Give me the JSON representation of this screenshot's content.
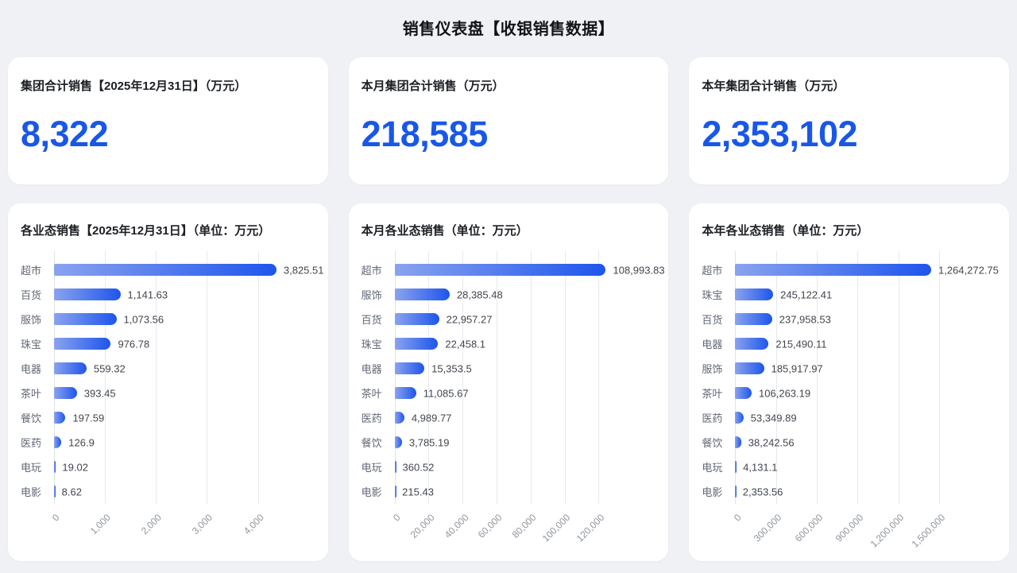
{
  "page_title": "销售仪表盘【收银销售数据】",
  "colors": {
    "accent_blue": "#1957e8",
    "bar_gradient_start": "#8aa3ee",
    "bar_gradient_end": "#1e55ec",
    "page_bg": "#f0f1f4",
    "card_bg": "#ffffff",
    "gridline": "#e7e9ed"
  },
  "kpi_cards": [
    {
      "label": "集团合计销售【2025年12月31日】（万元）",
      "value": "8,322"
    },
    {
      "label": "本月集团合计销售（万元）",
      "value": "218,585"
    },
    {
      "label": "本年集团合计销售（万元）",
      "value": "2,353,102"
    }
  ],
  "chart_data": [
    {
      "type": "bar",
      "orientation": "horizontal",
      "title": "各业态销售【2025年12月31日】（单位：万元）",
      "unit": "万元",
      "grid": true,
      "legend": "none",
      "xlim": [
        0,
        4000
      ],
      "categories": [
        "超市",
        "百货",
        "服饰",
        "珠宝",
        "电器",
        "茶叶",
        "餐饮",
        "医药",
        "电玩",
        "电影"
      ],
      "values": [
        3825.51,
        1141.63,
        1073.56,
        976.78,
        559.32,
        393.45,
        197.59,
        126.9,
        19.02,
        8.62
      ],
      "value_labels": [
        "3,825.51",
        "1,141.63",
        "1,073.56",
        "976.78",
        "559.32",
        "393.45",
        "197.59",
        "126.9",
        "19.02",
        "8.62"
      ],
      "x_ticks": [
        {
          "label": "0",
          "value": 0
        },
        {
          "label": "1,000",
          "value": 1000
        },
        {
          "label": "2,000",
          "value": 2000
        },
        {
          "label": "3,000",
          "value": 3000
        },
        {
          "label": "4,000",
          "value": 4000
        }
      ]
    },
    {
      "type": "bar",
      "orientation": "horizontal",
      "title": "本月各业态销售（单位：万元）",
      "unit": "万元",
      "grid": true,
      "legend": "none",
      "xlim": [
        0,
        120000
      ],
      "categories": [
        "超市",
        "服饰",
        "百货",
        "珠宝",
        "电器",
        "茶叶",
        "医药",
        "餐饮",
        "电玩",
        "电影"
      ],
      "values": [
        108993.83,
        28385.48,
        22957.27,
        22458.1,
        15353.5,
        11085.67,
        4989.77,
        3785.19,
        360.52,
        215.43
      ],
      "value_labels": [
        "108,993.83",
        "28,385.48",
        "22,957.27",
        "22,458.1",
        "15,353.5",
        "11,085.67",
        "4,989.77",
        "3,785.19",
        "360.52",
        "215.43"
      ],
      "x_ticks": [
        {
          "label": "0",
          "value": 0
        },
        {
          "label": "20,000",
          "value": 20000
        },
        {
          "label": "40,000",
          "value": 40000
        },
        {
          "label": "60,000",
          "value": 60000
        },
        {
          "label": "80,000",
          "value": 80000
        },
        {
          "label": "100,000",
          "value": 100000
        },
        {
          "label": "120,000",
          "value": 120000
        }
      ]
    },
    {
      "type": "bar",
      "orientation": "horizontal",
      "title": "本年各业态销售（单位：万元）",
      "unit": "万元",
      "grid": true,
      "legend": "none",
      "xlim": [
        0,
        1500000
      ],
      "categories": [
        "超市",
        "珠宝",
        "百货",
        "电器",
        "服饰",
        "茶叶",
        "医药",
        "餐饮",
        "电玩",
        "电影"
      ],
      "values": [
        1264272.75,
        245122.41,
        237958.53,
        215490.11,
        185917.97,
        106263.19,
        53349.89,
        38242.56,
        4131.1,
        2353.56
      ],
      "value_labels": [
        "1,264,272.75",
        "245,122.41",
        "237,958.53",
        "215,490.11",
        "185,917.97",
        "106,263.19",
        "53,349.89",
        "38,242.56",
        "4,131.1",
        "2,353.56"
      ],
      "x_ticks": [
        {
          "label": "0",
          "value": 0
        },
        {
          "label": "300,000",
          "value": 300000
        },
        {
          "label": "600,000",
          "value": 600000
        },
        {
          "label": "900,000",
          "value": 900000
        },
        {
          "label": "1,200,000",
          "value": 1200000
        },
        {
          "label": "1,500,000",
          "value": 1500000
        }
      ]
    }
  ]
}
